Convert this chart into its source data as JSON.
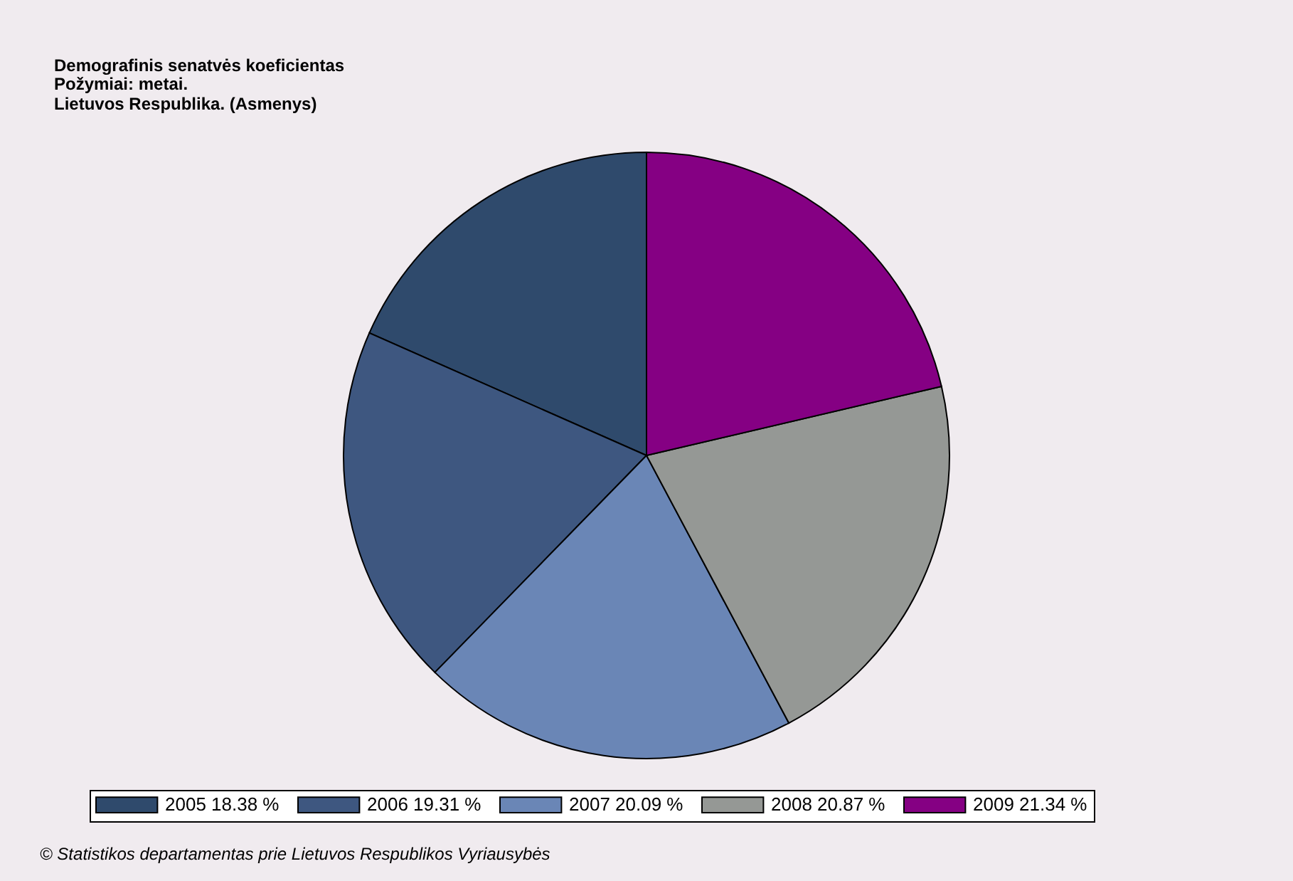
{
  "chart_data": {
    "type": "pie",
    "title": "Demografinis senatvės koeficientas",
    "subtitle": "Požymiai: metai.\nLietuvos Respublika. (Asmenys)",
    "categories": [
      "2005",
      "2006",
      "2007",
      "2008",
      "2009"
    ],
    "values": [
      18.38,
      19.31,
      20.09,
      20.87,
      21.34
    ],
    "value_labels": [
      "18.38 %",
      "19.31 %",
      "20.09 %",
      "20.87 %",
      "21.34 %"
    ],
    "colors": [
      "#2f4a6c",
      "#3e5780",
      "#6a86b6",
      "#959895",
      "#850083"
    ],
    "legend": "bottom",
    "annotations": [
      "© Statistikos departamentas prie Lietuvos Respublikos Vyriausybės"
    ]
  }
}
